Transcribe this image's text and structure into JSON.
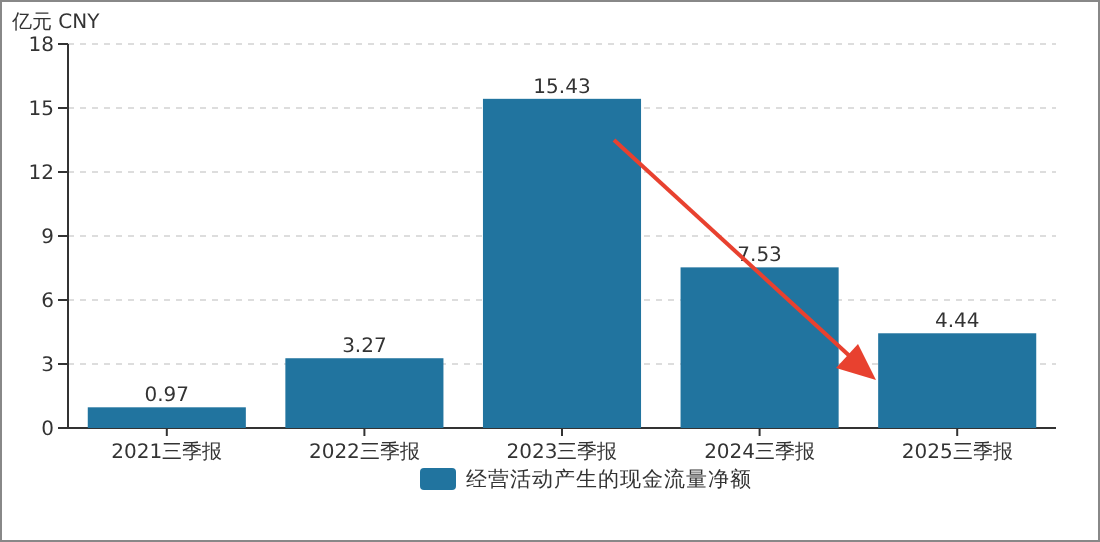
{
  "chart_data": {
    "type": "bar",
    "ylabel": "亿元  CNY",
    "categories": [
      "2021三季报",
      "2022三季报",
      "2023三季报",
      "2024三季报",
      "2025三季报"
    ],
    "series": [
      {
        "name": "经营活动产生的现金流量净额",
        "color": "#21749f",
        "values": [
          0.97,
          3.27,
          15.43,
          7.53,
          4.44
        ]
      }
    ],
    "ylim": [
      0,
      18
    ],
    "yticks": [
      0,
      3,
      6,
      9,
      12,
      15,
      18
    ],
    "grid": "y",
    "legend": "bottom",
    "data_labels": true
  }
}
